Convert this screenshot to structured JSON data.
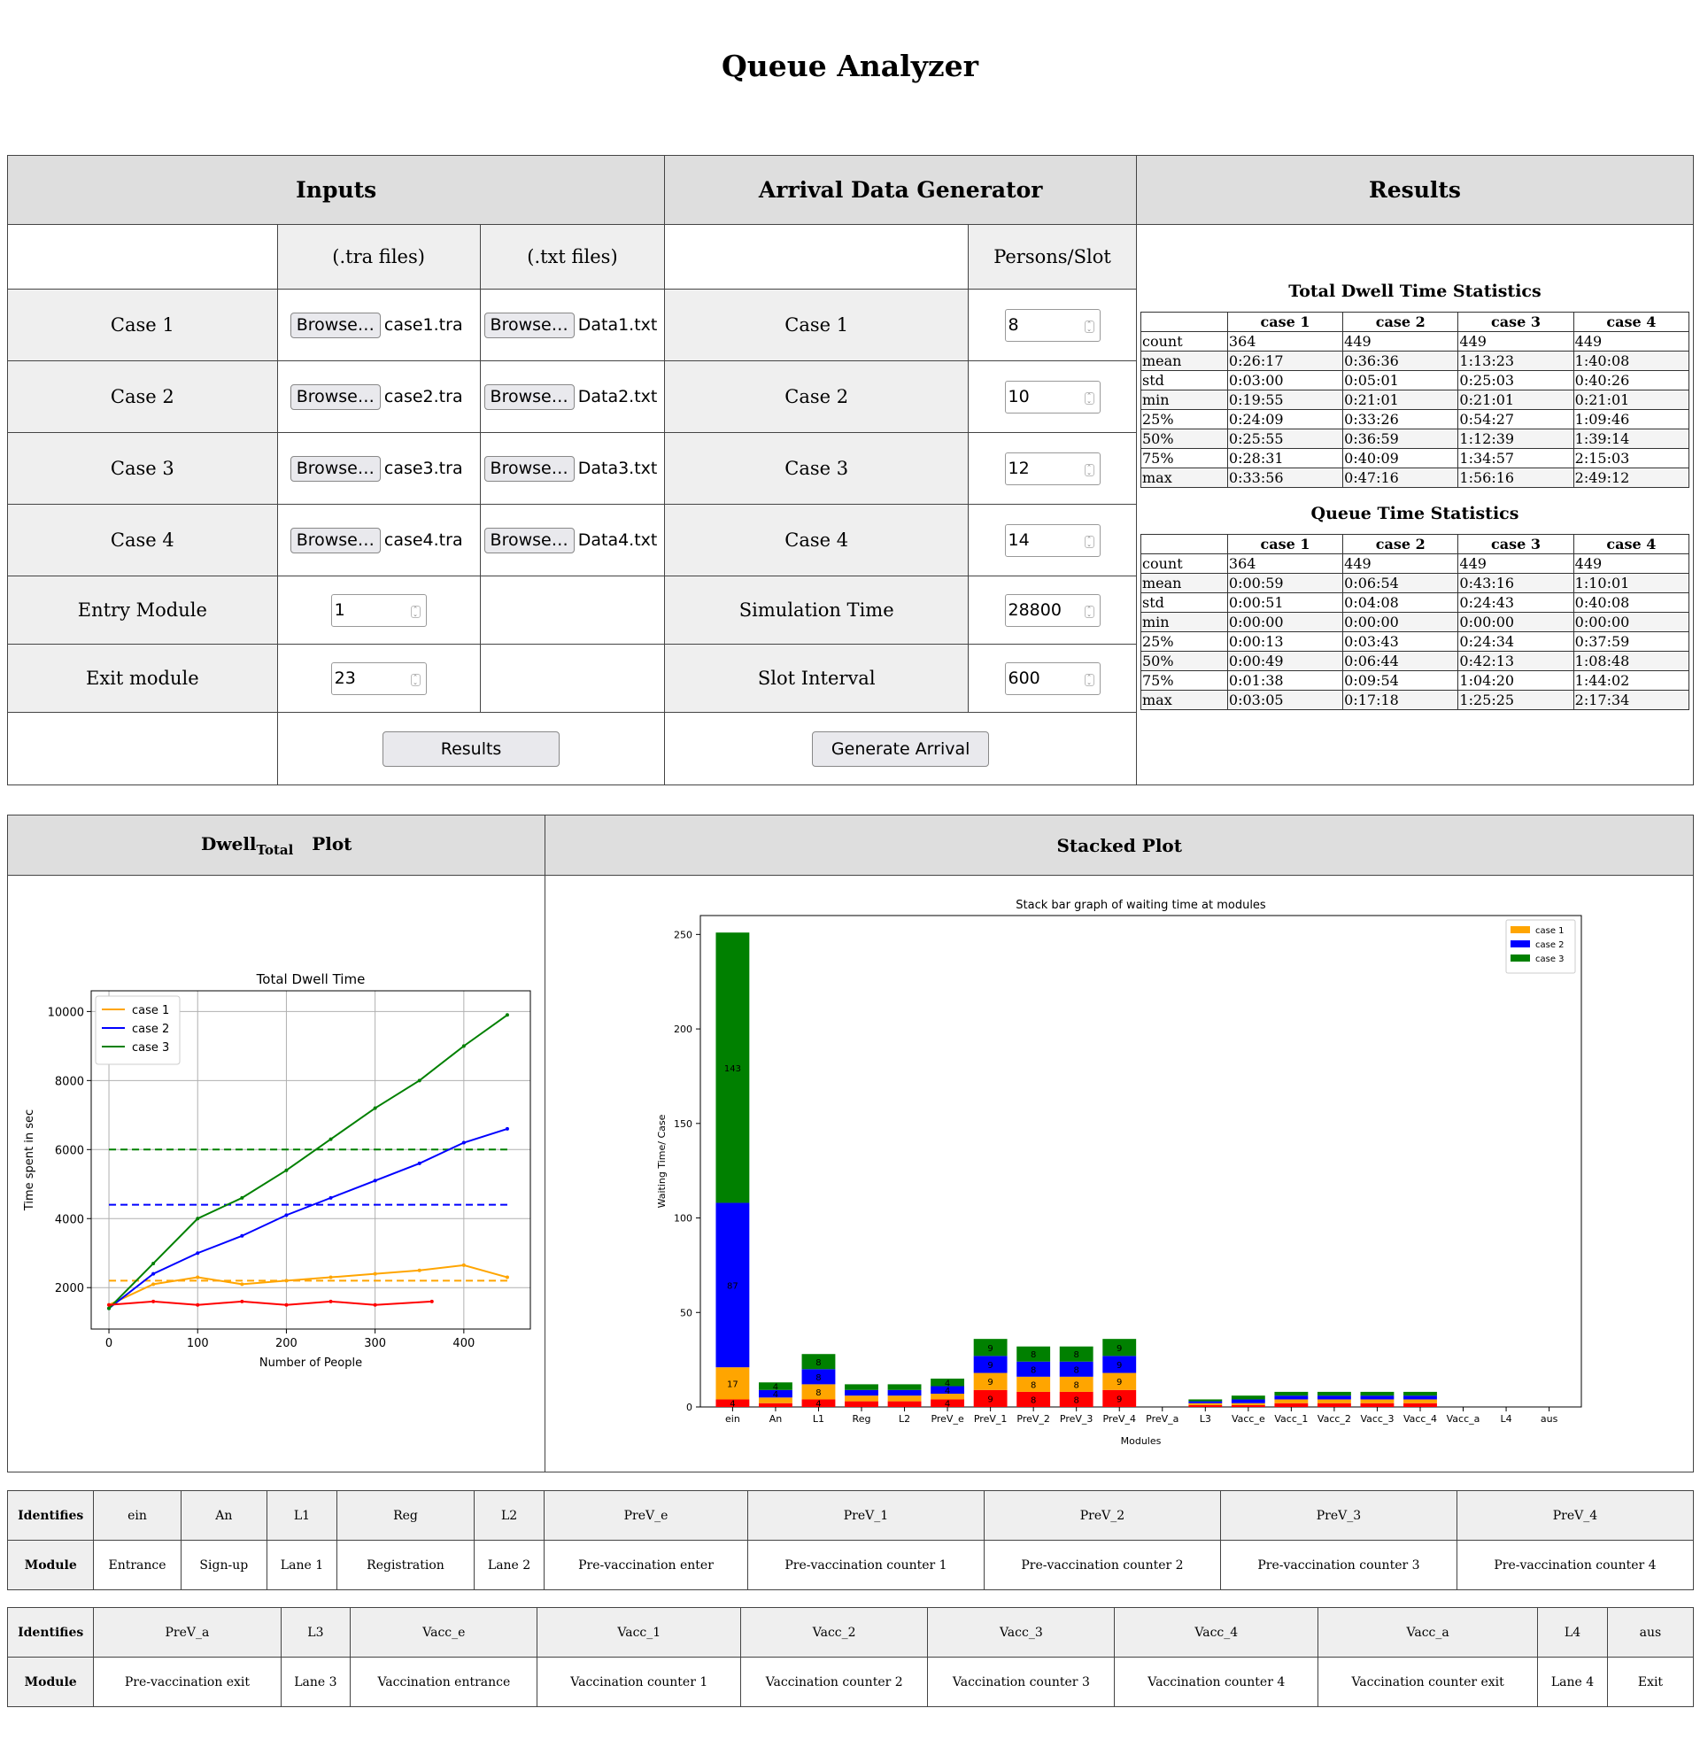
{
  "title": "Queue Analyzer",
  "inputs": {
    "header": "Inputs",
    "tra_header": "(.tra files)",
    "txt_header": "(.txt files)",
    "browse_label": "Browse…",
    "rows": [
      {
        "case": "Case 1",
        "tra": "case1.tra",
        "txt": "Data1.txt"
      },
      {
        "case": "Case 2",
        "tra": "case2.tra",
        "txt": "Data2.txt"
      },
      {
        "case": "Case 3",
        "tra": "case3.tra",
        "txt": "Data3.txt"
      },
      {
        "case": "Case 4",
        "tra": "case4.tra",
        "txt": "Data4.txt"
      }
    ],
    "entry_label": "Entry Module",
    "entry_value": "1",
    "exit_label": "Exit module",
    "exit_value": "23",
    "results_button": "Results"
  },
  "generator": {
    "header": "Arrival Data Generator",
    "persons_header": "Persons/Slot",
    "rows": [
      {
        "case": "Case 1",
        "value": "8"
      },
      {
        "case": "Case 2",
        "value": "10"
      },
      {
        "case": "Case 3",
        "value": "12"
      },
      {
        "case": "Case 4",
        "value": "14"
      }
    ],
    "sim_label": "Simulation Time",
    "sim_value": "28800",
    "slot_label": "Slot Interval",
    "slot_value": "600",
    "generate_button": "Generate Arrival"
  },
  "results": {
    "header": "Results",
    "dwell_title": "Total Dwell Time Statistics",
    "queue_title": "Queue Time Statistics",
    "columns": [
      "case 1",
      "case 2",
      "case 3",
      "case 4"
    ],
    "dwell_rows": [
      [
        "count",
        "364",
        "449",
        "449",
        "449"
      ],
      [
        "mean",
        "0:26:17",
        "0:36:36",
        "1:13:23",
        "1:40:08"
      ],
      [
        "std",
        "0:03:00",
        "0:05:01",
        "0:25:03",
        "0:40:26"
      ],
      [
        "min",
        "0:19:55",
        "0:21:01",
        "0:21:01",
        "0:21:01"
      ],
      [
        "25%",
        "0:24:09",
        "0:33:26",
        "0:54:27",
        "1:09:46"
      ],
      [
        "50%",
        "0:25:55",
        "0:36:59",
        "1:12:39",
        "1:39:14"
      ],
      [
        "75%",
        "0:28:31",
        "0:40:09",
        "1:34:57",
        "2:15:03"
      ],
      [
        "max",
        "0:33:56",
        "0:47:16",
        "1:56:16",
        "2:49:12"
      ]
    ],
    "queue_rows": [
      [
        "count",
        "364",
        "449",
        "449",
        "449"
      ],
      [
        "mean",
        "0:00:59",
        "0:06:54",
        "0:43:16",
        "1:10:01"
      ],
      [
        "std",
        "0:00:51",
        "0:04:08",
        "0:24:43",
        "0:40:08"
      ],
      [
        "min",
        "0:00:00",
        "0:00:00",
        "0:00:00",
        "0:00:00"
      ],
      [
        "25%",
        "0:00:13",
        "0:03:43",
        "0:24:34",
        "0:37:59"
      ],
      [
        "50%",
        "0:00:49",
        "0:06:44",
        "0:42:13",
        "1:08:48"
      ],
      [
        "75%",
        "0:01:38",
        "0:09:54",
        "1:04:20",
        "1:44:02"
      ],
      [
        "max",
        "0:03:05",
        "0:17:18",
        "1:25:25",
        "2:17:34"
      ]
    ]
  },
  "plots": {
    "dwell_header_main": "Dwell",
    "dwell_header_sub": "Total",
    "dwell_header_tail": "Plot",
    "stacked_header": "Stacked Plot"
  },
  "chart_data": [
    {
      "type": "line",
      "title": "Total Dwell Time",
      "xlabel": "Number of People",
      "ylabel": "Time spent in sec",
      "xlim": [
        -20,
        475
      ],
      "ylim": [
        800,
        10600
      ],
      "xticks": [
        0,
        100,
        200,
        300,
        400
      ],
      "yticks": [
        2000,
        4000,
        6000,
        8000,
        10000
      ],
      "grid": true,
      "legend_position": "top-left",
      "series": [
        {
          "name": "case 1",
          "color": "#ffa500",
          "x": [
            0,
            50,
            100,
            150,
            200,
            250,
            300,
            350,
            400,
            449
          ],
          "y": [
            1500,
            2100,
            2300,
            2100,
            2200,
            2300,
            2400,
            2500,
            2650,
            2300
          ]
        },
        {
          "name": "case 2",
          "color": "#0000ff",
          "x": [
            0,
            50,
            100,
            150,
            200,
            250,
            300,
            350,
            400,
            449
          ],
          "y": [
            1400,
            2400,
            3000,
            3500,
            4100,
            4600,
            5100,
            5600,
            6200,
            6600
          ]
        },
        {
          "name": "case 3",
          "color": "#008000",
          "x": [
            0,
            50,
            100,
            150,
            200,
            250,
            300,
            350,
            400,
            449
          ],
          "y": [
            1400,
            2700,
            4000,
            4600,
            5400,
            6300,
            7200,
            8000,
            9000,
            9900
          ]
        },
        {
          "color": "#ff0000",
          "x": [
            0,
            50,
            100,
            150,
            200,
            250,
            300,
            364
          ],
          "y": [
            1500,
            1600,
            1500,
            1600,
            1500,
            1600,
            1500,
            1600
          ]
        }
      ],
      "mean_lines": [
        {
          "color": "#ffa500",
          "y": 2200
        },
        {
          "color": "#0000ff",
          "y": 4400
        },
        {
          "color": "#008000",
          "y": 6000
        }
      ]
    },
    {
      "type": "bar",
      "title": "Stack bar graph of waiting time at modules",
      "xlabel": "Modules",
      "ylabel": "Waiting Time/ Case",
      "ylim": [
        0,
        260
      ],
      "yticks": [
        0,
        50,
        100,
        150,
        200,
        250
      ],
      "legend_position": "top-right",
      "categories": [
        "ein",
        "An",
        "L1",
        "Reg",
        "L2",
        "PreV_e",
        "PreV_1",
        "PreV_2",
        "PreV_3",
        "PreV_4",
        "PreV_a",
        "L3",
        "Vacc_e",
        "Vacc_1",
        "Vacc_2",
        "Vacc_3",
        "Vacc_4",
        "Vacc_a",
        "L4",
        "aus"
      ],
      "series": [
        {
          "color": "#ff0000",
          "values": [
            4,
            2,
            4,
            3,
            3,
            4,
            9,
            8,
            8,
            9,
            0,
            1,
            1,
            2,
            2,
            2,
            2,
            0,
            0,
            0
          ]
        },
        {
          "name": "case 1",
          "color": "#ffa500",
          "values": [
            17,
            3,
            8,
            3,
            3,
            3,
            9,
            8,
            8,
            9,
            0,
            1,
            1,
            2,
            2,
            2,
            2,
            0,
            0,
            0
          ]
        },
        {
          "name": "case 2",
          "color": "#0000ff",
          "values": [
            87,
            4,
            8,
            3,
            3,
            4,
            9,
            8,
            8,
            9,
            0,
            1,
            2,
            2,
            2,
            2,
            2,
            0,
            0,
            0
          ]
        },
        {
          "name": "case 3",
          "color": "#008000",
          "values": [
            143,
            4,
            8,
            3,
            3,
            4,
            9,
            8,
            8,
            9,
            0,
            1,
            2,
            2,
            2,
            2,
            2,
            0,
            0,
            0
          ]
        }
      ]
    }
  ],
  "identifiers": {
    "ident_label": "Identifies",
    "module_label": "Module",
    "table1": [
      {
        "id": "ein",
        "module": "Entrance"
      },
      {
        "id": "An",
        "module": "Sign-up"
      },
      {
        "id": "L1",
        "module": "Lane 1"
      },
      {
        "id": "Reg",
        "module": "Registration"
      },
      {
        "id": "L2",
        "module": "Lane 2"
      },
      {
        "id": "PreV_e",
        "module": "Pre-vaccination enter"
      },
      {
        "id": "PreV_1",
        "module": "Pre-vaccination counter 1"
      },
      {
        "id": "PreV_2",
        "module": "Pre-vaccination counter 2"
      },
      {
        "id": "PreV_3",
        "module": "Pre-vaccination counter 3"
      },
      {
        "id": "PreV_4",
        "module": "Pre-vaccination counter 4"
      }
    ],
    "table2": [
      {
        "id": "PreV_a",
        "module": "Pre-vaccination exit"
      },
      {
        "id": "L3",
        "module": "Lane 3"
      },
      {
        "id": "Vacc_e",
        "module": "Vaccination entrance"
      },
      {
        "id": "Vacc_1",
        "module": "Vaccination counter 1"
      },
      {
        "id": "Vacc_2",
        "module": "Vaccination counter 2"
      },
      {
        "id": "Vacc_3",
        "module": "Vaccination counter 3"
      },
      {
        "id": "Vacc_4",
        "module": "Vaccination counter 4"
      },
      {
        "id": "Vacc_a",
        "module": "Vaccination counter exit"
      },
      {
        "id": "L4",
        "module": "Lane 4"
      },
      {
        "id": "aus",
        "module": "Exit"
      }
    ]
  }
}
